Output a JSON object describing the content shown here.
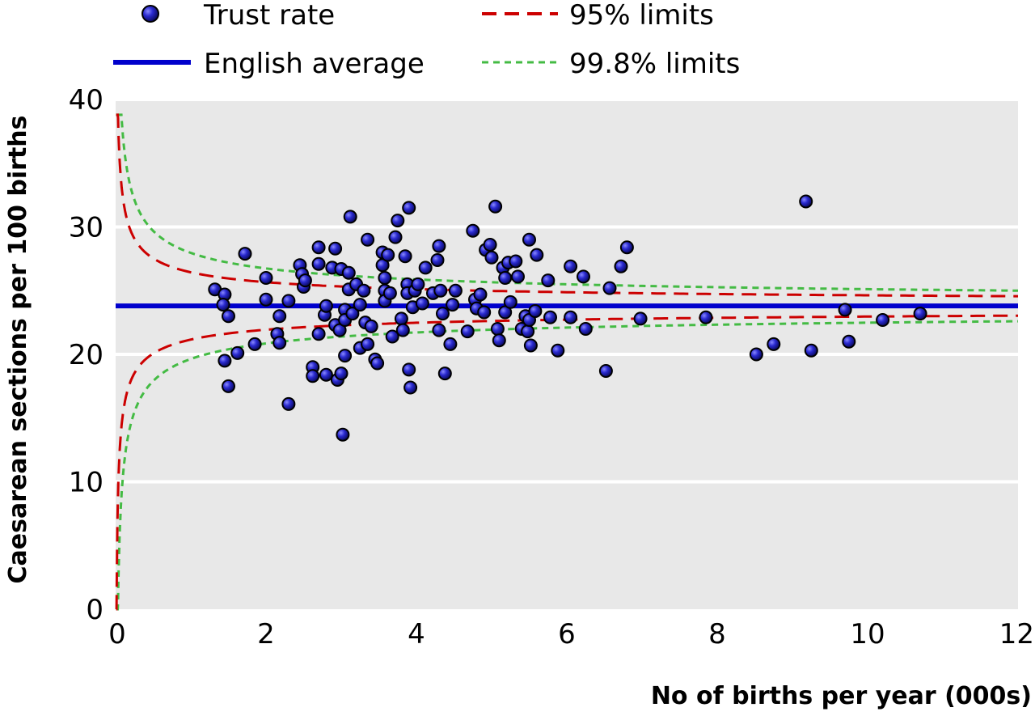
{
  "chart_data": {
    "type": "scatter",
    "title": "",
    "xlabel": "No of births per year (000s)",
    "ylabel": "Caesarean sections per 100 births",
    "xlim": [
      0,
      12
    ],
    "ylim": [
      0,
      40
    ],
    "xticks": [
      0,
      2,
      4,
      6,
      8,
      10,
      12
    ],
    "yticks": [
      0,
      10,
      20,
      30,
      40
    ],
    "grid": "horizontal",
    "legend_position": "top",
    "legend": [
      {
        "label": "Trust rate",
        "kind": "marker"
      },
      {
        "label": "95% limits",
        "kind": "dashed-line"
      },
      {
        "label": "English average",
        "kind": "solid-line"
      },
      {
        "label": "99.8% limits",
        "kind": "dotted-line"
      }
    ],
    "colors": {
      "plot_background": "#e8e8e8",
      "grid": "#ffffff",
      "points": "#1a1aa8",
      "average": "#0000cc",
      "limits95": "#cc0000",
      "limits998": "#44bb44"
    },
    "average": 23.8,
    "limits_model": {
      "p": 0.238,
      "z95": 1.96,
      "z998": 3.09
    },
    "series": [
      {
        "name": "Trust rate",
        "points": [
          [
            1.32,
            25.1
          ],
          [
            1.45,
            24.7
          ],
          [
            1.43,
            23.9
          ],
          [
            1.5,
            23.0
          ],
          [
            1.45,
            19.5
          ],
          [
            1.5,
            17.5
          ],
          [
            1.62,
            20.1
          ],
          [
            1.72,
            27.9
          ],
          [
            1.85,
            20.8
          ],
          [
            2.0,
            26.0
          ],
          [
            2.0,
            24.3
          ],
          [
            2.15,
            21.6
          ],
          [
            2.18,
            23.0
          ],
          [
            2.18,
            20.9
          ],
          [
            2.3,
            24.2
          ],
          [
            2.3,
            16.1
          ],
          [
            2.45,
            27.0
          ],
          [
            2.48,
            26.3
          ],
          [
            2.5,
            25.3
          ],
          [
            2.52,
            25.8
          ],
          [
            2.62,
            19.0
          ],
          [
            2.62,
            18.3
          ],
          [
            2.7,
            28.4
          ],
          [
            2.7,
            27.1
          ],
          [
            2.7,
            21.6
          ],
          [
            2.78,
            23.1
          ],
          [
            2.8,
            23.8
          ],
          [
            2.8,
            18.4
          ],
          [
            2.88,
            26.8
          ],
          [
            2.92,
            28.3
          ],
          [
            2.92,
            22.3
          ],
          [
            2.95,
            18.0
          ],
          [
            2.98,
            21.9
          ],
          [
            3.0,
            26.7
          ],
          [
            3.0,
            18.5
          ],
          [
            3.02,
            13.7
          ],
          [
            3.05,
            23.5
          ],
          [
            3.05,
            22.7
          ],
          [
            3.05,
            19.9
          ],
          [
            3.1,
            26.4
          ],
          [
            3.1,
            25.1
          ],
          [
            3.12,
            30.8
          ],
          [
            3.15,
            23.2
          ],
          [
            3.2,
            25.5
          ],
          [
            3.25,
            23.9
          ],
          [
            3.25,
            20.5
          ],
          [
            3.3,
            25.0
          ],
          [
            3.32,
            22.5
          ],
          [
            3.35,
            29.0
          ],
          [
            3.35,
            20.8
          ],
          [
            3.4,
            22.2
          ],
          [
            3.45,
            19.6
          ],
          [
            3.48,
            19.3
          ],
          [
            3.55,
            28.0
          ],
          [
            3.55,
            27.0
          ],
          [
            3.58,
            26.0
          ],
          [
            3.58,
            25.0
          ],
          [
            3.58,
            24.2
          ],
          [
            3.62,
            27.8
          ],
          [
            3.65,
            24.8
          ],
          [
            3.68,
            21.4
          ],
          [
            3.72,
            29.2
          ],
          [
            3.75,
            30.5
          ],
          [
            3.8,
            22.8
          ],
          [
            3.82,
            21.9
          ],
          [
            3.85,
            27.7
          ],
          [
            3.88,
            25.5
          ],
          [
            3.88,
            24.8
          ],
          [
            3.9,
            31.5
          ],
          [
            3.9,
            18.8
          ],
          [
            3.92,
            17.4
          ],
          [
            3.95,
            23.7
          ],
          [
            3.98,
            25.0
          ],
          [
            4.02,
            25.5
          ],
          [
            4.08,
            24.0
          ],
          [
            4.12,
            26.8
          ],
          [
            4.22,
            24.8
          ],
          [
            4.28,
            27.4
          ],
          [
            4.3,
            28.5
          ],
          [
            4.3,
            21.9
          ],
          [
            4.32,
            25.0
          ],
          [
            4.35,
            23.2
          ],
          [
            4.38,
            18.5
          ],
          [
            4.45,
            20.8
          ],
          [
            4.48,
            23.9
          ],
          [
            4.52,
            25.0
          ],
          [
            4.68,
            21.8
          ],
          [
            4.75,
            29.7
          ],
          [
            4.78,
            24.3
          ],
          [
            4.8,
            23.6
          ],
          [
            4.85,
            24.7
          ],
          [
            4.9,
            23.3
          ],
          [
            4.92,
            28.2
          ],
          [
            4.98,
            28.6
          ],
          [
            5.0,
            27.6
          ],
          [
            5.05,
            31.6
          ],
          [
            5.08,
            22.0
          ],
          [
            5.1,
            21.1
          ],
          [
            5.15,
            26.8
          ],
          [
            5.18,
            26.0
          ],
          [
            5.18,
            23.3
          ],
          [
            5.22,
            27.2
          ],
          [
            5.25,
            24.1
          ],
          [
            5.32,
            27.3
          ],
          [
            5.35,
            26.1
          ],
          [
            5.4,
            22.0
          ],
          [
            5.45,
            23.0
          ],
          [
            5.48,
            21.8
          ],
          [
            5.5,
            29.0
          ],
          [
            5.5,
            22.7
          ],
          [
            5.52,
            20.7
          ],
          [
            5.58,
            23.4
          ],
          [
            5.6,
            27.8
          ],
          [
            5.75,
            25.8
          ],
          [
            5.78,
            22.9
          ],
          [
            5.88,
            20.3
          ],
          [
            6.05,
            26.9
          ],
          [
            6.05,
            22.9
          ],
          [
            6.22,
            26.1
          ],
          [
            6.25,
            22.0
          ],
          [
            6.52,
            18.7
          ],
          [
            6.57,
            25.2
          ],
          [
            6.72,
            26.9
          ],
          [
            6.8,
            28.4
          ],
          [
            6.98,
            22.8
          ],
          [
            7.85,
            22.9
          ],
          [
            8.52,
            20.0
          ],
          [
            8.75,
            20.8
          ],
          [
            9.18,
            32.0
          ],
          [
            9.25,
            20.3
          ],
          [
            9.7,
            23.5
          ],
          [
            9.75,
            21.0
          ],
          [
            10.2,
            22.7
          ],
          [
            10.7,
            23.2
          ]
        ]
      }
    ]
  }
}
